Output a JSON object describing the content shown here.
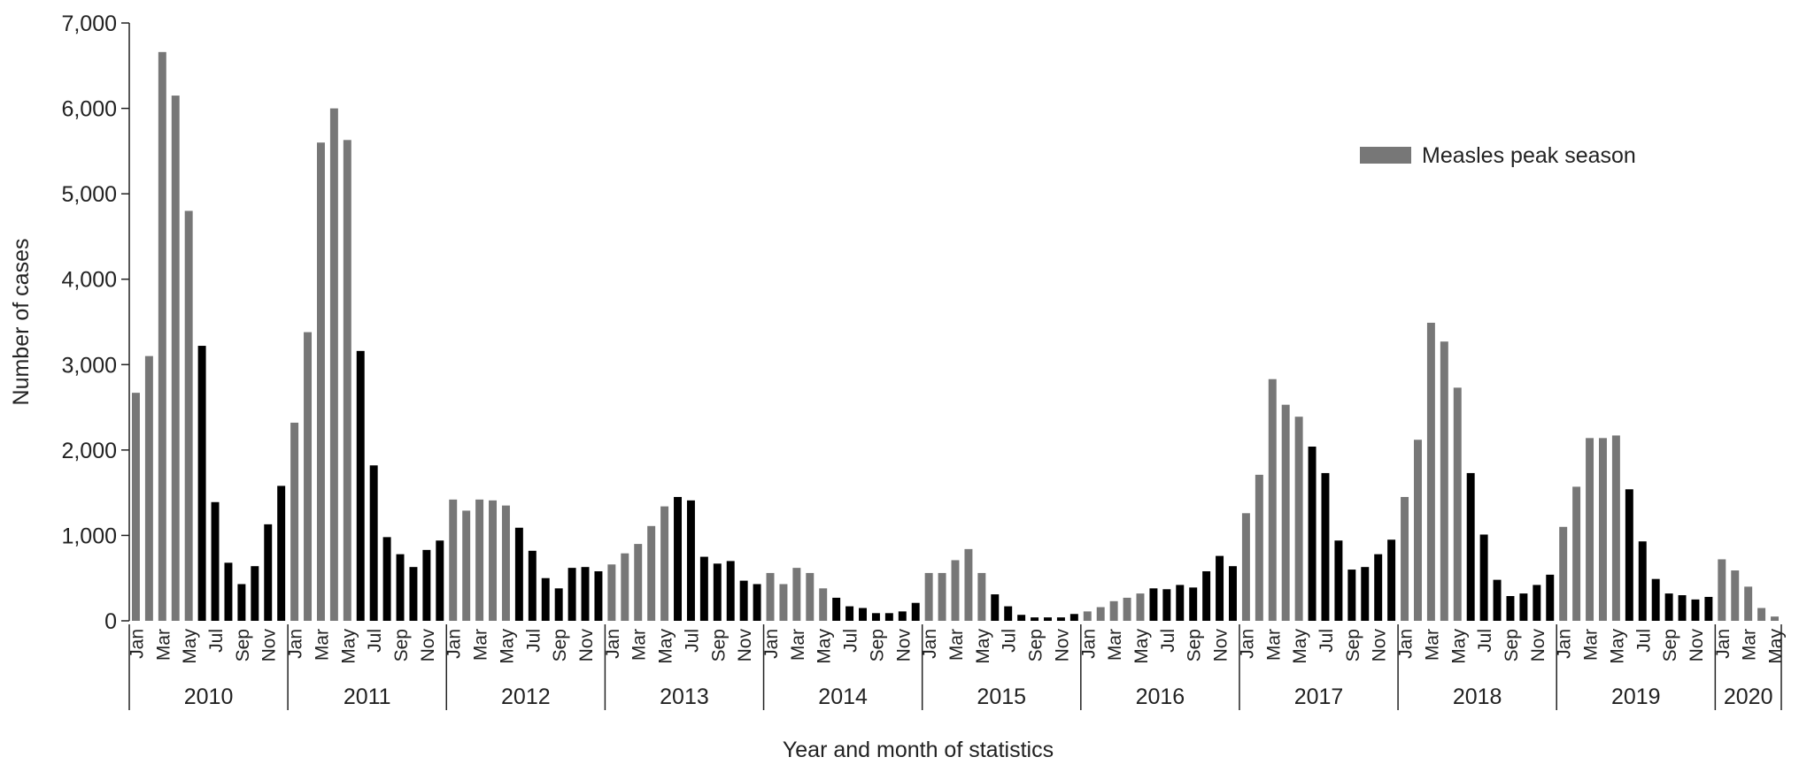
{
  "chart_data": {
    "type": "bar",
    "x_label": "Year and month of statistics",
    "y_label": "Number of cases",
    "ylim": [
      0,
      7000
    ],
    "yticks": [
      0,
      {
        "value": 1000,
        "label": "1,000"
      },
      {
        "value": 2000,
        "label": "2,000"
      },
      {
        "value": 3000,
        "label": "3,000"
      },
      {
        "value": 4000,
        "label": "4,000"
      },
      {
        "value": 5000,
        "label": "5,000"
      },
      {
        "value": 6000,
        "label": "6,000"
      },
      {
        "value": 7000,
        "label": "7,000"
      }
    ],
    "legend": "upper right",
    "categories": [
      "Jan",
      null,
      "Mar",
      null,
      "May",
      null,
      "Jul",
      null,
      "Sep",
      null,
      "Nov",
      null,
      "Jan",
      null,
      "Mar",
      null,
      "May",
      null,
      "Jul",
      null,
      "Sep",
      null,
      "Nov",
      null,
      "Jan",
      null,
      "Mar",
      null,
      "May",
      null,
      "Jul",
      null,
      "Sep",
      null,
      "Nov",
      null,
      "Jan",
      null,
      "Mar",
      null,
      "May",
      null,
      "Jul",
      null,
      "Sep",
      null,
      "Nov",
      null,
      "Jan",
      null,
      "Mar",
      null,
      "May",
      null,
      "Jul",
      null,
      "Sep",
      null,
      "Nov",
      null,
      "Jan",
      null,
      "Mar",
      null,
      "May",
      null,
      "Jul",
      null,
      "Sep",
      null,
      "Nov",
      null,
      "Jan",
      null,
      "Mar",
      null,
      "May",
      null,
      "Jul",
      null,
      "Sep",
      null,
      "Nov",
      null,
      "Jan",
      null,
      "Mar",
      null,
      "May",
      null,
      "Jul",
      null,
      "Sep",
      null,
      "Nov",
      null,
      "Jan",
      null,
      "Mar",
      null,
      "May",
      null,
      "Jul",
      null,
      "Sep",
      null,
      "Nov",
      null,
      "Jan",
      null,
      "Mar",
      null,
      "May",
      null,
      "Jul",
      null,
      "Sep",
      null,
      "Nov",
      null,
      "Jan",
      null,
      "Mar",
      null,
      "May"
    ],
    "years": [
      "2010",
      "2011",
      "2012",
      "2013",
      "2014",
      "2015",
      "2016",
      "2017",
      "2018",
      "2019",
      "2020"
    ],
    "series": [
      {
        "name": "Measles peak season",
        "color": "#777777",
        "values": [
          2670,
          3100,
          6660,
          6150,
          4800,
          null,
          null,
          null,
          null,
          null,
          null,
          null,
          2320,
          3380,
          5600,
          6000,
          5630,
          null,
          null,
          null,
          null,
          null,
          null,
          null,
          1420,
          1290,
          1420,
          1410,
          1350,
          null,
          null,
          null,
          null,
          null,
          null,
          null,
          660,
          790,
          900,
          1110,
          1340,
          null,
          null,
          null,
          null,
          null,
          null,
          null,
          560,
          430,
          620,
          560,
          380,
          null,
          null,
          null,
          null,
          null,
          null,
          null,
          560,
          560,
          710,
          840,
          560,
          null,
          null,
          null,
          null,
          null,
          null,
          null,
          110,
          160,
          230,
          270,
          320,
          null,
          null,
          null,
          null,
          null,
          null,
          null,
          1260,
          1710,
          2830,
          2530,
          2390,
          null,
          null,
          null,
          null,
          null,
          null,
          null,
          1450,
          2120,
          3490,
          3270,
          2730,
          null,
          null,
          null,
          null,
          null,
          null,
          null,
          1100,
          1570,
          2140,
          2140,
          2170,
          null,
          null,
          null,
          null,
          null,
          null,
          null,
          720,
          590,
          400,
          150,
          50
        ]
      },
      {
        "color": "#000000",
        "values": [
          null,
          null,
          null,
          null,
          null,
          3220,
          1390,
          680,
          430,
          640,
          1130,
          1580,
          null,
          null,
          null,
          null,
          null,
          3160,
          1820,
          980,
          780,
          630,
          830,
          940,
          null,
          null,
          null,
          null,
          null,
          1090,
          820,
          500,
          380,
          620,
          630,
          580,
          null,
          null,
          null,
          null,
          null,
          1450,
          1410,
          750,
          670,
          700,
          470,
          430,
          null,
          null,
          null,
          null,
          null,
          270,
          170,
          150,
          90,
          90,
          110,
          210,
          null,
          null,
          null,
          null,
          null,
          310,
          170,
          70,
          40,
          40,
          40,
          80,
          null,
          null,
          null,
          null,
          null,
          380,
          370,
          420,
          390,
          580,
          760,
          640,
          null,
          null,
          null,
          null,
          null,
          2040,
          1730,
          940,
          600,
          630,
          780,
          950,
          null,
          null,
          null,
          null,
          null,
          1730,
          1010,
          480,
          290,
          320,
          420,
          540,
          null,
          null,
          null,
          null,
          null,
          1540,
          930,
          490,
          320,
          300,
          250,
          280,
          null,
          null,
          null,
          null,
          null
        ]
      }
    ]
  }
}
